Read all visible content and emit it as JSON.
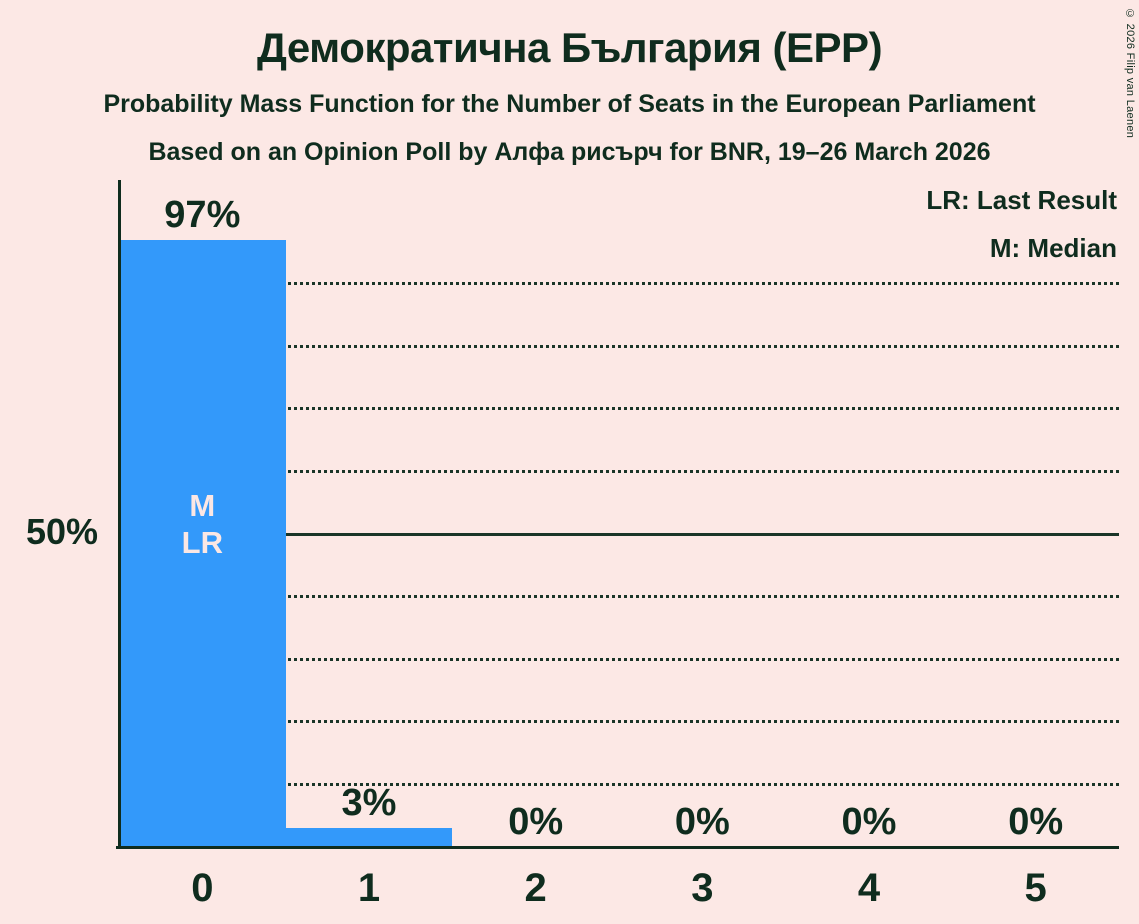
{
  "title": "Демократична България (EPP)",
  "subtitle1": "Probability Mass Function for the Number of Seats in the European Parliament",
  "subtitle2": "Based on an Opinion Poll by Алфа рисърч for BNR, 19–26 March 2026",
  "legend": {
    "lr": "LR: Last Result",
    "m": "M: Median"
  },
  "y_axis_label": "50%",
  "copyright": "© 2026 Filip van Laenen",
  "colors": {
    "background": "#fce8e5",
    "text_dark": "#0f2c1e",
    "bar_blue": "#3399fa",
    "annotation_light": "#fbe7e4"
  },
  "chart_data": {
    "type": "bar",
    "title": "Демократична България (EPP)",
    "categories": [
      "0",
      "1",
      "2",
      "3",
      "4",
      "5"
    ],
    "values": [
      97,
      3,
      0,
      0,
      0,
      0
    ],
    "bar_labels": [
      "97%",
      "3%",
      "0%",
      "0%",
      "0%",
      "0%"
    ],
    "bar_annotations": [
      [
        "M",
        "LR"
      ],
      [],
      [],
      [],
      [],
      []
    ],
    "ylim": [
      0,
      106
    ],
    "gridlines_pct": [
      10,
      20,
      30,
      40,
      50,
      60,
      70,
      80,
      90
    ],
    "solid_line_pct": 50,
    "y_labeled_value": "50%",
    "grid": "dotted-horizontal",
    "legend_position": "top-right",
    "legend_entries": [
      "LR: Last Result",
      "M: Median"
    ]
  }
}
